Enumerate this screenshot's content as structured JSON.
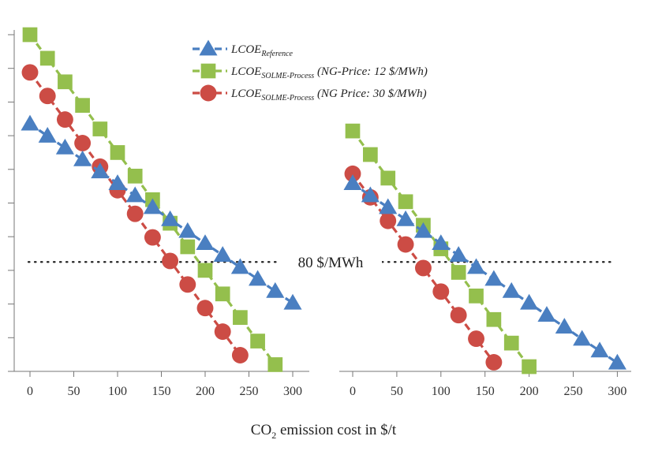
{
  "chart_data": {
    "type": "line",
    "panels": [
      {
        "name": "left",
        "x": [
          0,
          20,
          40,
          60,
          80,
          100,
          120,
          140,
          160,
          180,
          200,
          220,
          240,
          260,
          280,
          300
        ],
        "xlim": [
          -12,
          322
        ],
        "xticks": [
          0,
          50,
          100,
          150,
          200,
          250,
          300
        ],
        "ylim": [
          0,
          100
        ],
        "series": [
          {
            "key": "ref",
            "values": [
              73.5,
              69.9,
              66.4,
              62.9,
              59.3,
              55.8,
              52.2,
              48.7,
              45.1,
              41.6,
              38.0,
              34.5,
              30.9,
              27.4,
              23.8,
              20.3
            ]
          },
          {
            "key": "ng12",
            "values": [
              100,
              93.0,
              86.0,
              79.0,
              72.0,
              65.0,
              58.0,
              51.0,
              44.0,
              37.0,
              30.0,
              23.0,
              16.0,
              9.0,
              2.0
            ]
          },
          {
            "key": "ng30",
            "values": [
              88.8,
              81.8,
              74.8,
              67.8,
              60.8,
              53.8,
              46.8,
              39.8,
              32.8,
              25.8,
              18.8,
              11.8,
              4.8
            ]
          }
        ]
      },
      {
        "name": "right",
        "x": [
          0,
          20,
          40,
          60,
          80,
          100,
          120,
          140,
          160,
          180,
          200,
          220,
          240,
          260,
          280,
          300
        ],
        "xlim": [
          -12,
          322
        ],
        "xticks": [
          0,
          50,
          100,
          150,
          200,
          250,
          300
        ],
        "ylim": [
          0,
          100
        ],
        "series": [
          {
            "key": "ref",
            "values": [
              55.8,
              52.2,
              48.7,
              45.1,
              41.6,
              38.0,
              34.5,
              30.9,
              27.4,
              23.8,
              20.3,
              16.7,
              13.2,
              9.6,
              6.1,
              2.5
            ]
          },
          {
            "key": "ng12",
            "values": [
              71.4,
              64.4,
              57.4,
              50.4,
              43.4,
              36.4,
              29.4,
              22.4,
              15.4,
              8.4,
              1.4
            ]
          },
          {
            "key": "ng30",
            "values": [
              58.7,
              51.7,
              44.7,
              37.7,
              30.7,
              23.7,
              16.7,
              9.7,
              2.7
            ]
          }
        ]
      }
    ],
    "reference_line": {
      "value": 32.5,
      "label": "80 $/MWh"
    },
    "legend": [
      {
        "key": "ref",
        "marker": "triangle",
        "color": "#4a7fc1",
        "main": "LCOE",
        "sub": "Reference",
        "note": ""
      },
      {
        "key": "ng12",
        "marker": "square",
        "color": "#94bf4d",
        "main": "LCOE",
        "sub": "SOLME-Process",
        "note": " (NG-Price: 12 $/MWh)"
      },
      {
        "key": "ng30",
        "marker": "circle",
        "color": "#cc4c45",
        "main": "LCOE",
        "sub": "SOLME-Process",
        "note": " (NG Price: 30 $/MWh)"
      }
    ],
    "legend_position": "top-center",
    "xlabel": {
      "prefix": "CO",
      "sub": "2",
      "suffix": " emission cost in $/t"
    },
    "grid": false
  }
}
